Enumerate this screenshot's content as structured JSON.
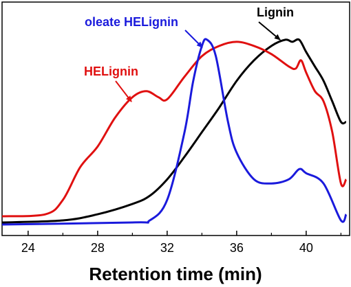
{
  "chart_data": {
    "type": "line",
    "title": "",
    "xlabel": "Retention time (min)",
    "ylabel": "",
    "xlim": [
      22.5,
      42.5
    ],
    "ylim": [
      0,
      1
    ],
    "grid": false,
    "legend": "none",
    "x_ticks": [
      24,
      28,
      32,
      36,
      40
    ],
    "x_tick_labels": [
      "24",
      "28",
      "32",
      "36",
      "40"
    ],
    "series": [
      {
        "name": "Lignin",
        "color": "#000000",
        "points": [
          [
            22.5,
            0.01
          ],
          [
            26,
            0.02
          ],
          [
            28,
            0.05
          ],
          [
            30,
            0.1
          ],
          [
            31,
            0.14
          ],
          [
            32,
            0.22
          ],
          [
            33,
            0.33
          ],
          [
            34,
            0.45
          ],
          [
            35,
            0.57
          ],
          [
            36,
            0.7
          ],
          [
            37,
            0.8
          ],
          [
            38,
            0.87
          ],
          [
            38.8,
            0.9
          ],
          [
            39.2,
            0.89
          ],
          [
            39.6,
            0.9
          ],
          [
            40,
            0.84
          ],
          [
            40.5,
            0.77
          ],
          [
            41,
            0.7
          ],
          [
            41.5,
            0.6
          ],
          [
            42,
            0.5
          ],
          [
            42.3,
            0.5
          ]
        ]
      },
      {
        "name": "HELignin",
        "color": "#e01010",
        "points": [
          [
            22.5,
            0.04
          ],
          [
            25,
            0.05
          ],
          [
            26,
            0.12
          ],
          [
            27,
            0.28
          ],
          [
            28,
            0.38
          ],
          [
            29,
            0.52
          ],
          [
            30,
            0.62
          ],
          [
            30.8,
            0.65
          ],
          [
            31.5,
            0.62
          ],
          [
            32,
            0.61
          ],
          [
            33,
            0.72
          ],
          [
            34,
            0.82
          ],
          [
            35,
            0.87
          ],
          [
            36,
            0.89
          ],
          [
            37,
            0.87
          ],
          [
            38,
            0.83
          ],
          [
            39,
            0.77
          ],
          [
            39.4,
            0.76
          ],
          [
            39.7,
            0.8
          ],
          [
            40,
            0.74
          ],
          [
            40.5,
            0.65
          ],
          [
            41,
            0.6
          ],
          [
            41.5,
            0.45
          ],
          [
            42,
            0.2
          ],
          [
            42.3,
            0.22
          ]
        ]
      },
      {
        "name": "oleate HELignin",
        "color": "#1a1adc",
        "points": [
          [
            22.5,
            0.0
          ],
          [
            30,
            0.01
          ],
          [
            31,
            0.02
          ],
          [
            32,
            0.12
          ],
          [
            33,
            0.45
          ],
          [
            33.5,
            0.7
          ],
          [
            34,
            0.87
          ],
          [
            34.3,
            0.9
          ],
          [
            34.8,
            0.82
          ],
          [
            35.5,
            0.5
          ],
          [
            36,
            0.35
          ],
          [
            37,
            0.22
          ],
          [
            38,
            0.2
          ],
          [
            39,
            0.22
          ],
          [
            39.6,
            0.27
          ],
          [
            40,
            0.25
          ],
          [
            41,
            0.2
          ],
          [
            42,
            0.02
          ],
          [
            42.3,
            0.05
          ]
        ]
      }
    ],
    "annotations": [
      {
        "label": "oleate HELignin",
        "color": "#1a1adc",
        "points_to": [
          34.2,
          0.88
        ]
      },
      {
        "label": "Lignin",
        "color": "#000000",
        "points_to": [
          38.7,
          0.88
        ]
      },
      {
        "label": "HELignin",
        "color": "#e01010",
        "points_to": [
          30.6,
          0.62
        ]
      }
    ]
  }
}
